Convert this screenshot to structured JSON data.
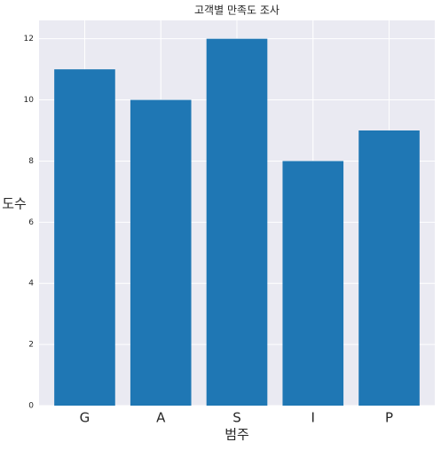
{
  "chart_data": {
    "type": "bar",
    "title": "고객별 만족도 조사",
    "x_label": "범주",
    "y_label": "도수",
    "categories": [
      "G",
      "A",
      "S",
      "I",
      "P"
    ],
    "values": [
      11,
      10,
      12,
      8,
      9
    ],
    "color": "#1f77b4",
    "ylim": [
      0,
      12.6
    ],
    "yticks": [
      0,
      2,
      4,
      6,
      8,
      10,
      12
    ],
    "grid": true
  }
}
